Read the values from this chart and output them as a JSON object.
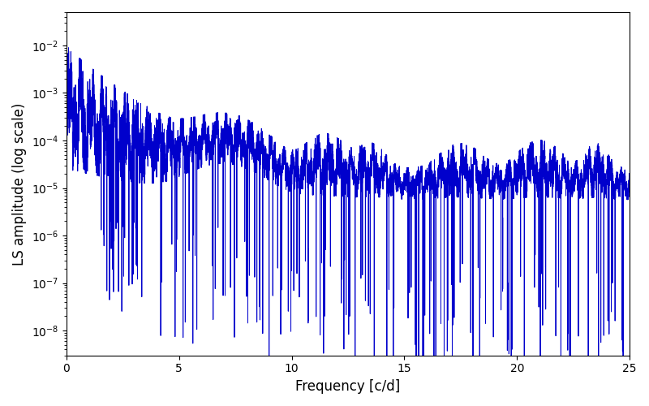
{
  "xlabel": "Frequency [c/d]",
  "ylabel": "LS amplitude (log scale)",
  "line_color": "#0000CC",
  "line_width": 0.7,
  "xlim": [
    0,
    25
  ],
  "ylim": [
    3e-09,
    0.05
  ],
  "yscale": "log",
  "figsize": [
    8.0,
    5.0
  ],
  "dpi": 100,
  "n_points": 12000,
  "freq_max": 25.0,
  "seed": 7,
  "background_color": "#ffffff",
  "xlabel_fontsize": 12,
  "ylabel_fontsize": 12
}
